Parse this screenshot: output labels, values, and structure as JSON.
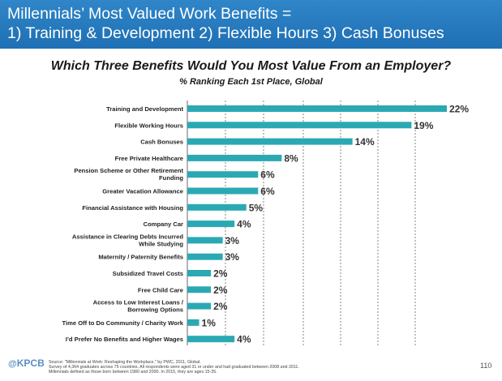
{
  "header": {
    "line1": "Millennials’ Most Valued Work Benefits =",
    "line2": "1) Training & Development  2) Flexible Hours  3) Cash Bonuses"
  },
  "chart_data": {
    "type": "bar",
    "orientation": "horizontal",
    "title": "Which Three Benefits Would You Most Value From an Employer?",
    "subtitle": "% Ranking Each 1st Place, Global",
    "categories": [
      [
        "Training and Development"
      ],
      [
        "Flexible Working Hours"
      ],
      [
        "Cash Bonuses"
      ],
      [
        "Free Private Healthcare"
      ],
      [
        "Pension Scheme or Other Retirement",
        "Funding"
      ],
      [
        "Greater Vacation Allowance"
      ],
      [
        "Financial Assistance with Housing"
      ],
      [
        "Company Car"
      ],
      [
        "Assistance in Clearing Debts Incurred",
        "While Studying"
      ],
      [
        "Maternity / Paternity Benefits"
      ],
      [
        "Subsidized Travel Costs"
      ],
      [
        "Free Child Care"
      ],
      [
        "Access to Low Interest Loans /",
        "Borrowing Options"
      ],
      [
        "Time Off to Do Community / Charity Work"
      ],
      [
        "I’d Prefer No Benefits and Higher Wages"
      ]
    ],
    "values": [
      22,
      19,
      14,
      8,
      6,
      6,
      5,
      4,
      3,
      3,
      2,
      2,
      2,
      1,
      4
    ],
    "value_labels": [
      "22%",
      "19%",
      "14%",
      "8%",
      "6%",
      "6%",
      "5%",
      "4%",
      "3%",
      "3%",
      "2%",
      "2%",
      "2%",
      "1%",
      "4%"
    ],
    "xlim": [
      0,
      22
    ],
    "grid": "vertical dashed",
    "bar_color": "#2aa9b3"
  },
  "footer": {
    "logo_at": "@",
    "logo": "KPCB",
    "source_lines": [
      "Source: \"Millennials at Work: Reshaping the Workplace,\" by PWC, 2011, Global.",
      "Survey of 4,364 graduates across 75 countries. All respondents were aged 31 or under and had graduated between 2008 and 2011.",
      "Millennials defined as those born between 1980 and 2000. In 2015, they are ages 15-35."
    ],
    "page": "110"
  }
}
